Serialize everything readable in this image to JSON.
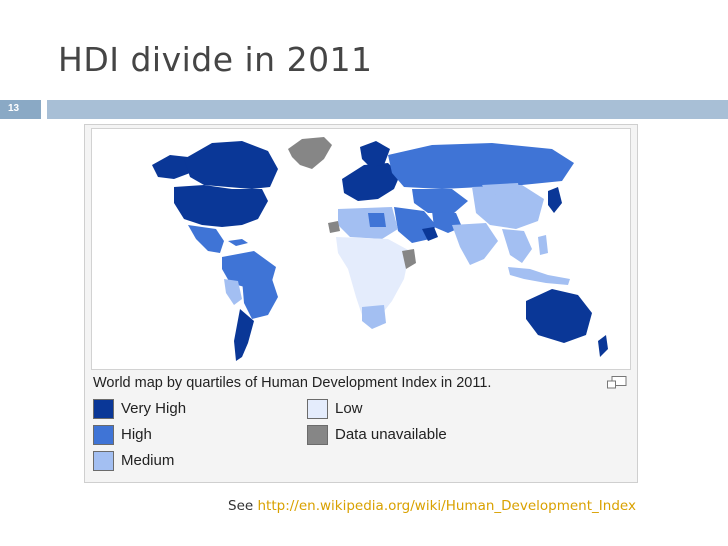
{
  "slide": {
    "title": "HDI divide in 2011",
    "number": "13"
  },
  "figure": {
    "caption": "World map by quartiles of Human Development Index in 2011.",
    "legend": [
      {
        "label": "Very High",
        "color": "#0a3797"
      },
      {
        "label": "High",
        "color": "#3f74d6"
      },
      {
        "label": "Medium",
        "color": "#a3bff2"
      },
      {
        "label": "Low",
        "color": "#e4ecfc"
      },
      {
        "label": "Data unavailable",
        "color": "#868686"
      }
    ],
    "zoom_icon": "magnify-icon"
  },
  "footnote": {
    "prefix": "See",
    "link": "http://en.wikipedia.org/wiki/Human_Development_Index"
  },
  "colors": {
    "title_bar": "#a8bfd6",
    "slide_number_box": "#8aa9c5",
    "link": "#d9a100"
  }
}
